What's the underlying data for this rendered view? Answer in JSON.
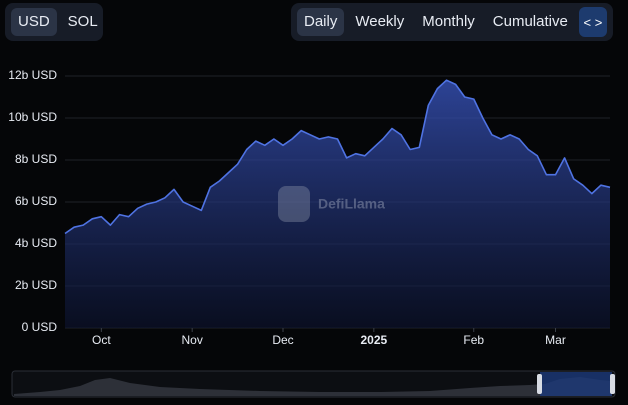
{
  "currency_toggle": [
    "USD",
    "SOL"
  ],
  "period_toggle": [
    "Daily",
    "Weekly",
    "Monthly",
    "Cumulative"
  ],
  "chart_data": {
    "type": "area",
    "watermark": "DefiLlama",
    "categories": [
      null,
      null,
      null,
      null,
      "Oct",
      null,
      null,
      null,
      null,
      null,
      null,
      null,
      null,
      null,
      "Nov",
      null,
      null,
      null,
      null,
      null,
      null,
      null,
      null,
      null,
      "Dec",
      null,
      null,
      null,
      null,
      null,
      null,
      null,
      null,
      null,
      "2025",
      null,
      null,
      null,
      null,
      null,
      null,
      null,
      null,
      null,
      null,
      "Feb",
      null,
      null,
      null,
      null,
      null,
      null,
      null,
      null,
      "Mar",
      null,
      null,
      null,
      null,
      null,
      null
    ],
    "values": [
      4.5,
      4.8,
      4.9,
      5.2,
      5.3,
      4.9,
      5.4,
      5.3,
      5.7,
      5.9,
      6.0,
      6.2,
      6.6,
      6.0,
      5.8,
      5.6,
      6.7,
      7.0,
      7.4,
      7.8,
      8.5,
      8.9,
      8.7,
      9.0,
      8.7,
      9.0,
      9.4,
      9.2,
      9.0,
      9.1,
      9.0,
      8.1,
      8.3,
      8.2,
      8.6,
      9.0,
      9.5,
      9.2,
      8.5,
      8.6,
      10.6,
      11.4,
      11.8,
      11.6,
      11.0,
      10.9,
      10.0,
      9.2,
      9.0,
      9.2,
      9.0,
      8.5,
      8.2,
      7.3,
      7.3,
      8.1,
      7.1,
      6.8,
      6.4,
      6.8,
      6.7
    ],
    "color": "#4f73e3",
    "ylim": [
      0,
      12
    ],
    "yticks": [
      {
        "value": 0,
        "label": "0 USD"
      },
      {
        "value": 2,
        "label": "2b USD"
      },
      {
        "value": 4,
        "label": "4b USD"
      },
      {
        "value": 6,
        "label": "6b USD"
      },
      {
        "value": 8,
        "label": "8b USD"
      },
      {
        "value": 10,
        "label": "10b USD"
      },
      {
        "value": 12,
        "label": "12b USD"
      }
    ],
    "grid": true
  }
}
